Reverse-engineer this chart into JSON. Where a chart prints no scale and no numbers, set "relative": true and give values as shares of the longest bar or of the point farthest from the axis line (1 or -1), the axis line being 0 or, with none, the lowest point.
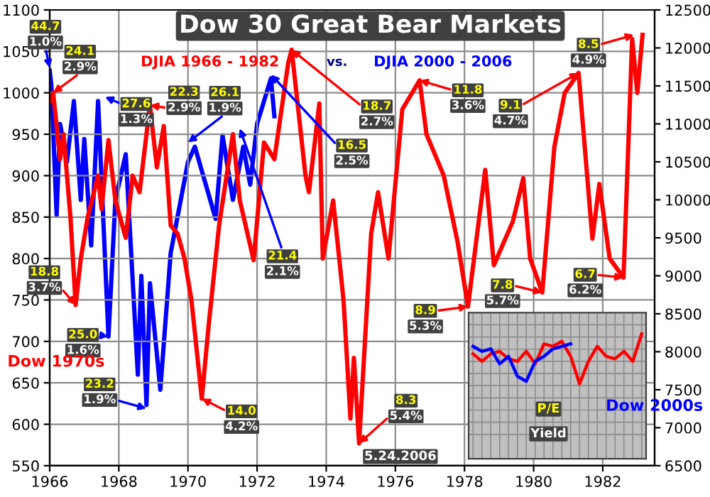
{
  "chart_data": [
    {
      "type": "line",
      "title": "Dow 30 Great Bear Markets",
      "xlim": [
        1966,
        1983.5
      ],
      "xticks": [
        1966,
        1968,
        1970,
        1972,
        1974,
        1976,
        1978,
        1980,
        1982
      ],
      "ylim": [
        550,
        1100
      ],
      "yticks": [
        550,
        600,
        650,
        700,
        750,
        800,
        850,
        900,
        950,
        1000,
        1050,
        1100
      ],
      "y2lim": [
        6500,
        12500
      ],
      "y2ticks": [
        6500,
        7000,
        7500,
        8000,
        8500,
        9000,
        9500,
        10000,
        10500,
        11000,
        11500,
        12000,
        12500
      ],
      "grid": true,
      "legend": "top",
      "series": [
        {
          "name": "DJIA 1966 - 1982",
          "color": "#ff0000",
          "x": [
            1966.0,
            1966.1,
            1966.3,
            1966.4,
            1966.6,
            1966.75,
            1966.9,
            1967.1,
            1967.4,
            1967.5,
            1967.7,
            1967.9,
            1968.2,
            1968.4,
            1968.6,
            1968.9,
            1969.1,
            1969.3,
            1969.5,
            1969.7,
            1969.9,
            1970.1,
            1970.4,
            1970.6,
            1970.9,
            1971.3,
            1971.5,
            1971.9,
            1972.2,
            1972.5,
            1972.9,
            1973.0,
            1973.4,
            1973.5,
            1973.8,
            1973.9,
            1974.2,
            1974.5,
            1974.7,
            1974.8,
            1974.95,
            1975.3,
            1975.5,
            1975.8,
            1976.2,
            1976.7,
            1976.9,
            1977.4,
            1977.8,
            1978.1,
            1978.6,
            1978.85,
            1979.4,
            1979.7,
            1979.9,
            1980.25,
            1980.6,
            1980.9,
            1981.3,
            1981.7,
            1981.9,
            1982.2,
            1982.6,
            1982.85,
            1983.0,
            1983.15
          ],
          "values": [
            990,
            1000,
            920,
            950,
            850,
            744,
            800,
            850,
            900,
            860,
            943,
            870,
            825,
            900,
            880,
            985,
            910,
            960,
            840,
            830,
            800,
            750,
            631,
            720,
            840,
            950,
            870,
            798,
            940,
            920,
            1036,
            1052,
            900,
            880,
            987,
            800,
            870,
            750,
            607,
            680,
            577,
            830,
            880,
            800,
            980,
            1015,
            950,
            900,
            820,
            742,
            907,
            792,
            845,
            897,
            800,
            759,
            935,
            1000,
            1024,
            824,
            890,
            800,
            777,
            1065,
            1000,
            1070
          ]
        },
        {
          "name": "DJIA 2000 - 2006",
          "color": "#0000ff",
          "axis": "y2",
          "x": [
            1966.0,
            1966.05,
            1966.2,
            1966.3,
            1966.5,
            1966.7,
            1966.9,
            1967.0,
            1967.2,
            1967.4,
            1967.7,
            1967.9,
            1968.2,
            1968.55,
            1968.65,
            1968.8,
            1968.9,
            1969.2,
            1969.5,
            1970.0,
            1970.2,
            1970.8,
            1971.0,
            1971.3,
            1971.6,
            1971.8,
            1972.0,
            1972.4,
            1972.5
          ],
          "values": [
            11700,
            11500,
            9800,
            11000,
            10500,
            11300,
            10000,
            10800,
            9400,
            11300,
            8200,
            10000,
            10600,
            7700,
            9000,
            7300,
            8900,
            7500,
            9300,
            10500,
            10700,
            9750,
            10850,
            10000,
            10700,
            10200,
            11000,
            11600,
            11100
          ]
        }
      ],
      "annotations": [
        {
          "text": "44.7\n1.0%",
          "x": 1966.0,
          "y": 1030
        },
        {
          "text": "24.1\n2.9%",
          "x": 1966.1,
          "y": 1000
        },
        {
          "text": "27.6\n1.3%",
          "x": 1967.6,
          "y": 995
        },
        {
          "text": "22.3\n2.9%",
          "x": 1968.9,
          "y": 985
        },
        {
          "text": "26.1\n1.9%",
          "x": 1970.0,
          "y": 940
        },
        {
          "text": "18.7\n2.7%",
          "x": 1973.0,
          "y": 1052
        },
        {
          "text": "16.5\n2.5%",
          "x": 1972.4,
          "y": 1022
        },
        {
          "text": "21.4\n2.1%",
          "x": 1971.5,
          "y": 957
        },
        {
          "text": "11.8\n3.6%",
          "x": 1976.7,
          "y": 1015
        },
        {
          "text": "9.1\n4.7%",
          "x": 1981.3,
          "y": 1024
        },
        {
          "text": "8.5\n4.9%",
          "x": 1982.9,
          "y": 1070
        },
        {
          "text": "18.8\n3.7%",
          "x": 1966.75,
          "y": 744
        },
        {
          "text": "25.0\n1.6%",
          "x": 1967.7,
          "y": 706
        },
        {
          "text": "23.2\n1.9%",
          "x": 1968.8,
          "y": 619
        },
        {
          "text": "14.0\n4.2%",
          "x": 1970.4,
          "y": 631
        },
        {
          "text": "8.9\n5.3%",
          "x": 1978.1,
          "y": 742
        },
        {
          "text": "7.8\n5.7%",
          "x": 1980.25,
          "y": 759
        },
        {
          "text": "6.7\n6.2%",
          "x": 1982.6,
          "y": 777
        },
        {
          "text": "8.3\n5.4%",
          "x": 1974.95,
          "y": 577
        },
        "vs.",
        "Dow 1970s",
        "Dow 2000s",
        "5.24.2006"
      ]
    },
    {
      "type": "line",
      "relative": true,
      "grid": true,
      "categories": [
        null,
        null,
        null,
        null,
        null,
        null,
        null,
        null,
        null,
        null,
        null,
        null,
        null,
        null,
        null,
        null,
        null,
        null,
        null,
        null
      ],
      "series": [
        {
          "color": "#ff0000",
          "values": [
            0.84,
            0.78,
            0.84,
            0.86,
            0.8,
            0.78,
            0.86,
            0.76,
            0.92,
            0.9,
            0.94,
            0.82,
            0.6,
            0.78,
            0.9,
            0.82,
            0.8,
            0.86,
            0.78,
            1.0
          ]
        },
        {
          "color": "#0000ff",
          "values": [
            0.9,
            0.86,
            0.88,
            0.76,
            0.82,
            0.66,
            0.62,
            0.78,
            0.82,
            0.88,
            0.9,
            0.92,
            null,
            null,
            null,
            null,
            null,
            null,
            null,
            null
          ]
        }
      ],
      "annotations": [
        "P/E",
        "Yield"
      ]
    }
  ]
}
